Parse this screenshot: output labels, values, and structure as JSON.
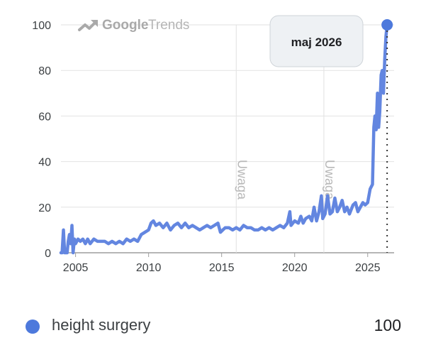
{
  "colors": {
    "series": "#6386e0",
    "marker": "#4d79dc",
    "grid": "#e2e2e2",
    "axis_text": "#3c4043",
    "note_text": "#b8b8b8",
    "tooltip_bg": "#eef1f4",
    "tooltip_border": "#cfd4d9"
  },
  "brand": {
    "icon": "trends-arrow-icon",
    "google": "Google",
    "trends": "Trends"
  },
  "tooltip": {
    "label": "maj 2026"
  },
  "legend": {
    "name": "height surgery",
    "value": "100"
  },
  "chart_data": {
    "type": "line",
    "title": "",
    "xlabel": "",
    "ylabel": "",
    "x_range": [
      2004.0,
      2026.42
    ],
    "ylim": [
      0,
      100
    ],
    "yticks": [
      0,
      20,
      40,
      60,
      80,
      100
    ],
    "xticks": [
      2005,
      2010,
      2015,
      2020,
      2025
    ],
    "grid": true,
    "annotations": [
      {
        "x": 2016.0,
        "text": "Uwaga"
      },
      {
        "x": 2022.0,
        "text": "Uwaga"
      }
    ],
    "highlight": {
      "x": 2026.33,
      "y": 100,
      "label": "maj 2026"
    },
    "series": [
      {
        "name": "height surgery",
        "points": [
          [
            2004.0,
            0
          ],
          [
            2004.08,
            0
          ],
          [
            2004.17,
            10
          ],
          [
            2004.25,
            0
          ],
          [
            2004.42,
            0
          ],
          [
            2004.5,
            5
          ],
          [
            2004.58,
            8
          ],
          [
            2004.67,
            4
          ],
          [
            2004.75,
            12
          ],
          [
            2004.83,
            0
          ],
          [
            2004.92,
            6
          ],
          [
            2005.0,
            4
          ],
          [
            2005.17,
            6
          ],
          [
            2005.33,
            5
          ],
          [
            2005.5,
            6
          ],
          [
            2005.67,
            4
          ],
          [
            2005.83,
            6
          ],
          [
            2006.0,
            4
          ],
          [
            2006.25,
            6
          ],
          [
            2006.5,
            5
          ],
          [
            2006.75,
            5
          ],
          [
            2007.0,
            5
          ],
          [
            2007.25,
            4
          ],
          [
            2007.5,
            5
          ],
          [
            2007.75,
            4
          ],
          [
            2008.0,
            5
          ],
          [
            2008.25,
            4
          ],
          [
            2008.5,
            6
          ],
          [
            2008.75,
            5
          ],
          [
            2009.0,
            6
          ],
          [
            2009.25,
            5
          ],
          [
            2009.5,
            8
          ],
          [
            2009.75,
            9
          ],
          [
            2010.0,
            10
          ],
          [
            2010.17,
            13
          ],
          [
            2010.33,
            14
          ],
          [
            2010.5,
            12
          ],
          [
            2010.75,
            13
          ],
          [
            2011.0,
            11
          ],
          [
            2011.25,
            13
          ],
          [
            2011.5,
            10
          ],
          [
            2011.75,
            12
          ],
          [
            2012.0,
            13
          ],
          [
            2012.25,
            11
          ],
          [
            2012.5,
            13
          ],
          [
            2012.75,
            11
          ],
          [
            2013.0,
            12
          ],
          [
            2013.25,
            11
          ],
          [
            2013.5,
            10
          ],
          [
            2013.75,
            11
          ],
          [
            2014.0,
            12
          ],
          [
            2014.25,
            11
          ],
          [
            2014.5,
            12
          ],
          [
            2014.75,
            13
          ],
          [
            2014.92,
            9
          ],
          [
            2015.08,
            10
          ],
          [
            2015.25,
            11
          ],
          [
            2015.5,
            11
          ],
          [
            2015.75,
            10
          ],
          [
            2016.0,
            11
          ],
          [
            2016.25,
            10
          ],
          [
            2016.5,
            12
          ],
          [
            2016.75,
            11
          ],
          [
            2017.0,
            11
          ],
          [
            2017.25,
            10
          ],
          [
            2017.5,
            10
          ],
          [
            2017.75,
            11
          ],
          [
            2018.0,
            10
          ],
          [
            2018.25,
            11
          ],
          [
            2018.5,
            10
          ],
          [
            2018.75,
            11
          ],
          [
            2019.0,
            12
          ],
          [
            2019.25,
            11
          ],
          [
            2019.5,
            13
          ],
          [
            2019.67,
            18
          ],
          [
            2019.75,
            12
          ],
          [
            2020.0,
            14
          ],
          [
            2020.25,
            13
          ],
          [
            2020.42,
            16
          ],
          [
            2020.58,
            13
          ],
          [
            2020.75,
            15
          ],
          [
            2021.0,
            16
          ],
          [
            2021.17,
            14
          ],
          [
            2021.33,
            20
          ],
          [
            2021.5,
            14
          ],
          [
            2021.67,
            18
          ],
          [
            2021.83,
            25
          ],
          [
            2021.92,
            15
          ],
          [
            2022.08,
            17
          ],
          [
            2022.25,
            25
          ],
          [
            2022.42,
            17
          ],
          [
            2022.58,
            18
          ],
          [
            2022.75,
            24
          ],
          [
            2022.92,
            18
          ],
          [
            2023.08,
            20
          ],
          [
            2023.25,
            23
          ],
          [
            2023.42,
            18
          ],
          [
            2023.58,
            20
          ],
          [
            2023.75,
            17
          ],
          [
            2024.0,
            21
          ],
          [
            2024.17,
            22
          ],
          [
            2024.33,
            18
          ],
          [
            2024.5,
            20
          ],
          [
            2024.67,
            22
          ],
          [
            2024.83,
            21
          ],
          [
            2025.0,
            22
          ],
          [
            2025.17,
            28
          ],
          [
            2025.33,
            30
          ],
          [
            2025.42,
            55
          ],
          [
            2025.5,
            60
          ],
          [
            2025.58,
            54
          ],
          [
            2025.67,
            70
          ],
          [
            2025.75,
            55
          ],
          [
            2025.83,
            62
          ],
          [
            2025.92,
            78
          ],
          [
            2026.0,
            80
          ],
          [
            2026.08,
            70
          ],
          [
            2026.17,
            85
          ],
          [
            2026.25,
            95
          ],
          [
            2026.33,
            100
          ]
        ]
      }
    ]
  }
}
